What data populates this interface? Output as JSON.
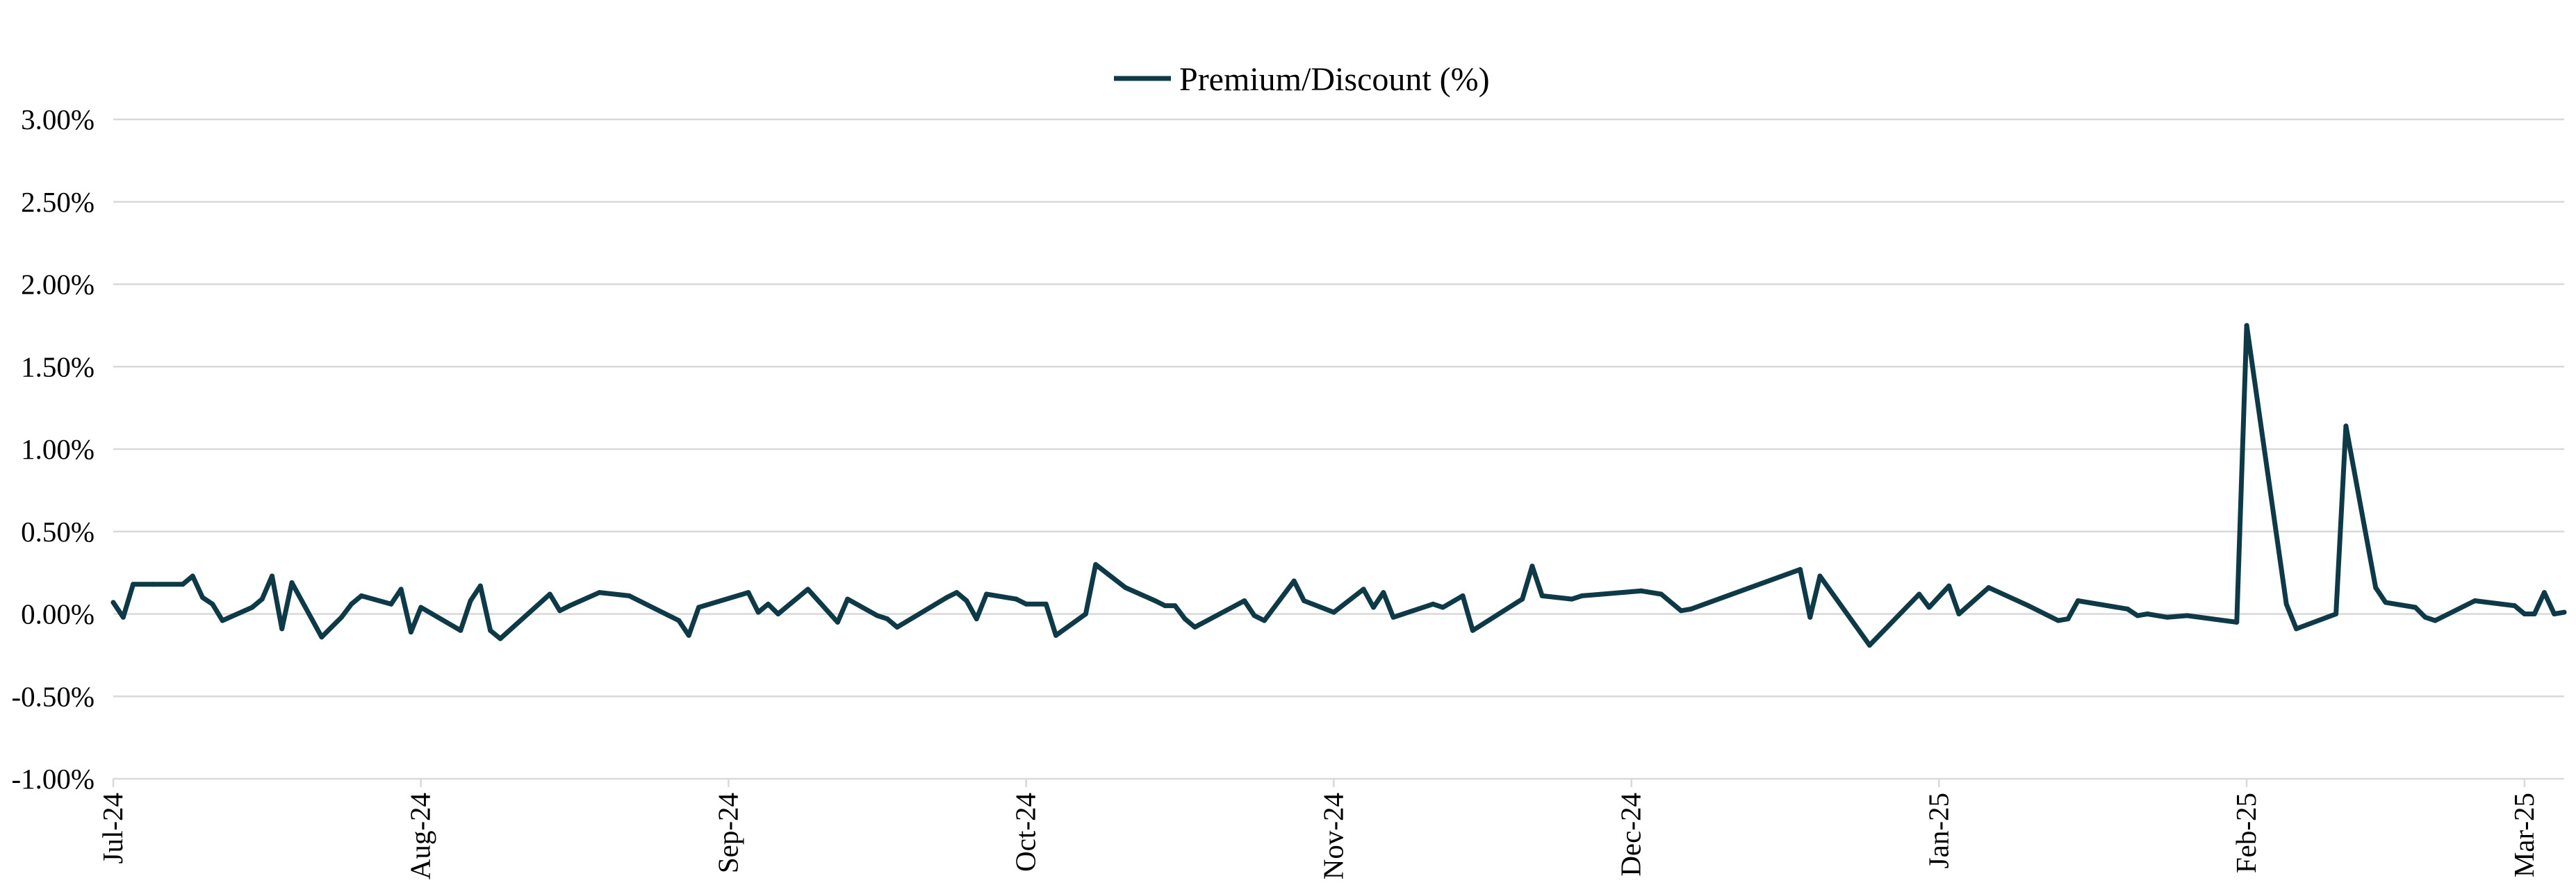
{
  "chart_data": {
    "type": "line",
    "title": "",
    "xlabel": "",
    "ylabel": "",
    "ylim": [
      -0.01,
      0.03
    ],
    "y_ticks": [
      -0.01,
      -0.005,
      0,
      0.005,
      0.01,
      0.015,
      0.02,
      0.025,
      0.03
    ],
    "y_tick_labels": [
      "-1.00%",
      "-0.50%",
      "0.00%",
      "0.50%",
      "1.00%",
      "1.50%",
      "2.00%",
      "2.50%",
      "3.00%"
    ],
    "x_range": [
      "2024-07-01",
      "2025-03-05"
    ],
    "x_ticks": [
      "2024-07-01",
      "2024-08-01",
      "2024-09-01",
      "2024-10-01",
      "2024-11-01",
      "2024-12-01",
      "2025-01-01",
      "2025-02-01",
      "2025-03-01"
    ],
    "x_tick_labels": [
      "Jul-24",
      "Aug-24",
      "Sep-24",
      "Oct-24",
      "Nov-24",
      "Dec-24",
      "Jan-25",
      "Feb-25",
      "Mar-25"
    ],
    "grid": true,
    "legend": {
      "position": "top-center"
    },
    "colors": {
      "series": "#0e3a47",
      "grid": "#d9d9d9"
    },
    "series": [
      {
        "name": "Premium/Discount (%)",
        "points": [
          [
            "2024-07-01",
            0.0007
          ],
          [
            "2024-07-02",
            -0.0002
          ],
          [
            "2024-07-03",
            0.0018
          ],
          [
            "2024-07-05",
            0.0018
          ],
          [
            "2024-07-08",
            0.0018
          ],
          [
            "2024-07-09",
            0.0023
          ],
          [
            "2024-07-10",
            0.001
          ],
          [
            "2024-07-11",
            0.0006
          ],
          [
            "2024-07-12",
            -0.0004
          ],
          [
            "2024-07-15",
            0.0004
          ],
          [
            "2024-07-16",
            0.0009
          ],
          [
            "2024-07-17",
            0.0023
          ],
          [
            "2024-07-18",
            -0.0009
          ],
          [
            "2024-07-19",
            0.0019
          ],
          [
            "2024-07-22",
            -0.0014
          ],
          [
            "2024-07-23",
            -0.0008
          ],
          [
            "2024-07-24",
            -0.0002
          ],
          [
            "2024-07-25",
            0.0006
          ],
          [
            "2024-07-26",
            0.0011
          ],
          [
            "2024-07-29",
            0.0006
          ],
          [
            "2024-07-30",
            0.0015
          ],
          [
            "2024-07-31",
            -0.0011
          ],
          [
            "2024-08-01",
            0.0004
          ],
          [
            "2024-08-05",
            -0.001
          ],
          [
            "2024-08-06",
            0.0008
          ],
          [
            "2024-08-07",
            0.0017
          ],
          [
            "2024-08-08",
            -0.001
          ],
          [
            "2024-08-09",
            -0.0015
          ],
          [
            "2024-08-14",
            0.0012
          ],
          [
            "2024-08-15",
            0.0002
          ],
          [
            "2024-08-16",
            0.0005
          ],
          [
            "2024-08-19",
            0.0013
          ],
          [
            "2024-08-22",
            0.0011
          ],
          [
            "2024-08-23",
            0.0008
          ],
          [
            "2024-08-26",
            -0.0001
          ],
          [
            "2024-08-27",
            -0.0004
          ],
          [
            "2024-08-28",
            -0.0013
          ],
          [
            "2024-08-29",
            0.0004
          ],
          [
            "2024-09-03",
            0.0013
          ],
          [
            "2024-09-04",
            0.0001
          ],
          [
            "2024-09-05",
            0.0006
          ],
          [
            "2024-09-06",
            0.0
          ],
          [
            "2024-09-09",
            0.0015
          ],
          [
            "2024-09-12",
            -0.0005
          ],
          [
            "2024-09-13",
            0.0009
          ],
          [
            "2024-09-16",
            -0.0001
          ],
          [
            "2024-09-17",
            -0.0003
          ],
          [
            "2024-09-18",
            -0.0008
          ],
          [
            "2024-09-23",
            0.001
          ],
          [
            "2024-09-24",
            0.0013
          ],
          [
            "2024-09-25",
            0.0008
          ],
          [
            "2024-09-26",
            -0.0003
          ],
          [
            "2024-09-27",
            0.0012
          ],
          [
            "2024-09-30",
            0.0009
          ],
          [
            "2024-10-01",
            0.0006
          ],
          [
            "2024-10-03",
            0.0006
          ],
          [
            "2024-10-04",
            -0.0013
          ],
          [
            "2024-10-07",
            0.0
          ],
          [
            "2024-10-08",
            0.003
          ],
          [
            "2024-10-11",
            0.0016
          ],
          [
            "2024-10-14",
            0.0008
          ],
          [
            "2024-10-15",
            0.0005
          ],
          [
            "2024-10-16",
            0.0005
          ],
          [
            "2024-10-17",
            -0.0003
          ],
          [
            "2024-10-18",
            -0.0008
          ],
          [
            "2024-10-23",
            0.0008
          ],
          [
            "2024-10-24",
            -0.0001
          ],
          [
            "2024-10-25",
            -0.0004
          ],
          [
            "2024-10-28",
            0.002
          ],
          [
            "2024-10-29",
            0.0008
          ],
          [
            "2024-11-01",
            0.0001
          ],
          [
            "2024-11-04",
            0.0015
          ],
          [
            "2024-11-05",
            0.0004
          ],
          [
            "2024-11-06",
            0.0013
          ],
          [
            "2024-11-07",
            -0.0002
          ],
          [
            "2024-11-11",
            0.0006
          ],
          [
            "2024-11-12",
            0.0004
          ],
          [
            "2024-11-14",
            0.0011
          ],
          [
            "2024-11-15",
            -0.001
          ],
          [
            "2024-11-20",
            0.0009
          ],
          [
            "2024-11-21",
            0.0029
          ],
          [
            "2024-11-22",
            0.0011
          ],
          [
            "2024-11-25",
            0.0009
          ],
          [
            "2024-11-26",
            0.0011
          ],
          [
            "2024-12-02",
            0.0014
          ],
          [
            "2024-12-04",
            0.0012
          ],
          [
            "2024-12-06",
            0.0002
          ],
          [
            "2024-12-07",
            0.0003
          ],
          [
            "2024-12-18",
            0.0027
          ],
          [
            "2024-12-19",
            -0.0002
          ],
          [
            "2024-12-20",
            0.0023
          ],
          [
            "2024-12-25",
            -0.0019
          ],
          [
            "2024-12-30",
            0.0012
          ],
          [
            "2024-12-31",
            0.0004
          ],
          [
            "2025-01-02",
            0.0017
          ],
          [
            "2025-01-03",
            0.0
          ],
          [
            "2025-01-06",
            0.0016
          ],
          [
            "2025-01-10",
            0.0005
          ],
          [
            "2025-01-13",
            -0.0004
          ],
          [
            "2025-01-14",
            -0.0003
          ],
          [
            "2025-01-15",
            0.0008
          ],
          [
            "2025-01-20",
            0.0003
          ],
          [
            "2025-01-21",
            -0.0001
          ],
          [
            "2025-01-22",
            0.0
          ],
          [
            "2025-01-24",
            -0.0002
          ],
          [
            "2025-01-26",
            -0.0001
          ],
          [
            "2025-01-31",
            -0.0005
          ],
          [
            "2025-02-01",
            0.0175
          ],
          [
            "2025-02-05",
            0.0006
          ],
          [
            "2025-02-06",
            -0.0009
          ],
          [
            "2025-02-10",
            0.0
          ],
          [
            "2025-02-11",
            0.0114
          ],
          [
            "2025-02-14",
            0.0016
          ],
          [
            "2025-02-15",
            0.0007
          ],
          [
            "2025-02-18",
            0.0004
          ],
          [
            "2025-02-19",
            -0.0002
          ],
          [
            "2025-02-20",
            -0.0004
          ],
          [
            "2025-02-24",
            0.0008
          ],
          [
            "2025-02-28",
            0.0005
          ],
          [
            "2025-03-01",
            0.0
          ],
          [
            "2025-03-02",
            0.0
          ],
          [
            "2025-03-03",
            0.0013
          ],
          [
            "2025-03-04",
            0.0
          ],
          [
            "2025-03-05",
            0.0001
          ]
        ]
      }
    ]
  }
}
